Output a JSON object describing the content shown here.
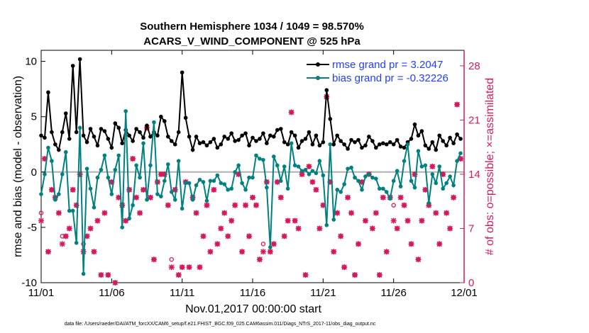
{
  "chart_data": {
    "type": "line",
    "title_line1": "Southern Hemisphere 1034 / 1049 = 98.570%",
    "title_line2": "ACARS_V_WIND_COMPONENT @ 525 hPa",
    "xlabel": "Nov.01,2017 00:00:00 start",
    "ylabel_left": "rmse and bias (model - observation)",
    "ylabel_right": "# of obs: o=possible; ×=assimilated",
    "footnote": "data file: /Users/raeder/DAI/ATM_forcXX/CAM6_setup/f.e21.FHIST_BGC.f09_025.CAM6assim.011/Diags_NTrS_2017-11/obs_diag_output.nc",
    "xlim": [
      0,
      30
    ],
    "ylim_left": [
      -10,
      11
    ],
    "ylim_right": [
      0,
      30
    ],
    "x_ticks": [
      0,
      5,
      10,
      15,
      20,
      25,
      30
    ],
    "x_tick_labels": [
      "11/01",
      "11/06",
      "11/11",
      "11/16",
      "11/21",
      "11/26",
      "12/01"
    ],
    "y_ticks_left": [
      -10,
      -5,
      0,
      5,
      10
    ],
    "y_tick_labels_left": [
      "-10",
      "-5",
      "0",
      "5",
      "10"
    ],
    "y_ticks_right": [
      0,
      7,
      14,
      21,
      28
    ],
    "y_tick_labels_right": [
      "0",
      "7",
      "14",
      "21",
      "28"
    ],
    "zero_line": 0,
    "colors": {
      "rmse": "#000000",
      "bias": "#00807f",
      "obs": "#d6195a",
      "legend_text": "#1f3fff",
      "zero": "#b0b0b0"
    },
    "series": [
      {
        "name": "rmse grand pr = 3.2047",
        "axis": "left",
        "x": [
          0.0,
          0.25,
          0.5,
          0.75,
          1.0,
          1.25,
          1.5,
          1.75,
          2.0,
          2.25,
          2.5,
          2.75,
          3.0,
          3.25,
          3.5,
          3.75,
          4.0,
          4.25,
          4.5,
          4.75,
          5.0,
          5.25,
          5.5,
          5.75,
          6.0,
          6.25,
          6.5,
          6.75,
          7.0,
          7.25,
          7.5,
          7.75,
          8.0,
          8.25,
          8.5,
          8.75,
          9.0,
          9.25,
          9.5,
          9.75,
          10.0,
          10.25,
          10.5,
          10.75,
          11.0,
          11.25,
          11.5,
          11.75,
          12.0,
          12.25,
          12.5,
          12.75,
          13.0,
          13.25,
          13.5,
          13.75,
          14.0,
          14.25,
          14.5,
          14.75,
          15.0,
          15.25,
          15.5,
          15.75,
          16.0,
          16.25,
          16.5,
          16.75,
          17.0,
          17.25,
          17.5,
          17.75,
          18.0,
          18.25,
          18.5,
          18.75,
          19.0,
          19.25,
          19.5,
          19.75,
          20.0,
          20.25,
          20.5,
          20.75,
          21.0,
          21.25,
          21.5,
          21.75,
          22.0,
          22.25,
          22.5,
          22.75,
          23.0,
          23.25,
          23.5,
          23.75,
          24.0,
          24.25,
          24.5,
          24.75,
          25.0,
          25.25,
          25.5,
          25.75,
          26.0,
          26.25,
          26.5,
          26.75,
          27.0,
          27.25,
          27.5,
          27.75,
          28.0,
          28.25,
          28.5,
          28.75,
          29.0,
          29.25,
          29.5,
          29.75
        ],
        "values": [
          3.3,
          3.1,
          7.2,
          3.6,
          2.5,
          2.0,
          3.6,
          5.3,
          3.0,
          9.6,
          3.6,
          10.2,
          3.3,
          2.7,
          3.9,
          3.2,
          2.4,
          3.9,
          3.7,
          3.0,
          2.2,
          4.4,
          4.0,
          2.6,
          3.8,
          3.3,
          2.8,
          3.9,
          3.6,
          3.1,
          4.2,
          3.2,
          3.6,
          3.3,
          5.0,
          4.6,
          3.2,
          2.8,
          2.5,
          3.6,
          9.0,
          4.9,
          3.2,
          2.0,
          3.2,
          2.6,
          2.7,
          2.4,
          2.7,
          3.0,
          2.2,
          2.5,
          3.2,
          3.0,
          3.5,
          2.8,
          2.9,
          3.3,
          3.5,
          2.4,
          3.1,
          2.8,
          3.0,
          3.5,
          2.6,
          3.3,
          3.2,
          3.8,
          3.9,
          2.7,
          2.5,
          3.6,
          3.3,
          2.2,
          2.8,
          3.0,
          3.6,
          2.5,
          3.3,
          2.4,
          2.7,
          7.4,
          4.8,
          2.5,
          3.3,
          2.8,
          2.5,
          2.1,
          2.9,
          2.7,
          2.9,
          2.2,
          2.4,
          3.2,
          2.8,
          2.2,
          2.5,
          2.6,
          2.5,
          2.7,
          2.5,
          2.9,
          2.3,
          2.2,
          2.7,
          3.0,
          4.3,
          3.3,
          3.7,
          2.4,
          2.1,
          2.7,
          2.0,
          3.3,
          2.8,
          2.4,
          3.1,
          2.6,
          3.4,
          3.0
        ]
      },
      {
        "name": "bias grand pr = -0.32226",
        "axis": "left",
        "x": [
          0.0,
          0.25,
          0.5,
          0.75,
          1.0,
          1.25,
          1.5,
          1.75,
          2.0,
          2.25,
          2.5,
          2.75,
          3.0,
          3.25,
          3.5,
          3.75,
          4.0,
          4.25,
          4.5,
          4.75,
          5.0,
          5.25,
          5.5,
          5.75,
          6.0,
          6.25,
          6.5,
          6.75,
          7.0,
          7.25,
          7.5,
          7.75,
          8.0,
          8.25,
          8.5,
          8.75,
          9.0,
          9.25,
          9.5,
          9.75,
          10.0,
          10.25,
          10.5,
          10.75,
          11.0,
          11.25,
          11.5,
          11.75,
          12.0,
          12.25,
          12.5,
          12.75,
          13.0,
          13.25,
          13.5,
          13.75,
          14.0,
          14.25,
          14.5,
          14.75,
          15.0,
          15.25,
          15.5,
          15.75,
          16.0,
          16.25,
          16.5,
          16.75,
          17.0,
          17.25,
          17.5,
          17.75,
          18.0,
          18.25,
          18.5,
          18.75,
          19.0,
          19.25,
          19.5,
          19.75,
          20.0,
          20.25,
          20.5,
          20.75,
          21.0,
          21.25,
          21.5,
          21.75,
          22.0,
          22.25,
          22.5,
          22.75,
          23.0,
          23.25,
          23.5,
          23.75,
          24.0,
          24.25,
          24.5,
          24.75,
          25.0,
          25.25,
          25.5,
          25.75,
          26.0,
          26.25,
          26.5,
          26.75,
          27.0,
          27.25,
          27.5,
          27.75,
          28.0,
          28.25,
          28.5,
          28.75,
          29.0,
          29.25,
          29.5,
          29.75
        ],
        "values": [
          -2.0,
          -0.2,
          2.2,
          1.0,
          -2.5,
          -2.0,
          -0.2,
          1.8,
          -3.5,
          -3.5,
          -6.4,
          4.0,
          -9.2,
          0.3,
          -1.5,
          -3.2,
          -0.5,
          0.2,
          1.5,
          -0.5,
          -2.0,
          0.2,
          1.5,
          -5.0,
          5.5,
          -4.2,
          -3.0,
          0.6,
          -0.5,
          2.6,
          -2.5,
          0.6,
          4.5,
          -2.0,
          -2.2,
          -0.8,
          0.7,
          -1.8,
          -2.5,
          1.0,
          -3.3,
          -1.0,
          -1.0,
          -2.5,
          -1.2,
          -0.7,
          -0.9,
          -2.6,
          -0.8,
          -0.8,
          -0.3,
          -1.0,
          -1.1,
          -1.6,
          -1.5,
          0.0,
          0.6,
          -1.0,
          -1.6,
          -0.5,
          -0.5,
          1.5,
          1.2,
          1.1,
          -1.4,
          -6.8,
          1.4,
          0.6,
          -0.8,
          0.5,
          -1.5,
          2.6,
          0.6,
          0.5,
          0.1,
          0.2,
          -0.2,
          0.1,
          -0.1,
          1.0,
          -0.3,
          -4.8,
          2.5,
          -4.3,
          -1.6,
          -1.8,
          -1.1,
          0.3,
          0.4,
          -0.5,
          -0.8,
          -1.6,
          -0.4,
          -0.2,
          -0.5,
          -0.6,
          -1.5,
          -1.5,
          -1.8,
          -2.4,
          -0.8,
          0.1,
          -1.3,
          1.0,
          2.5,
          -0.8,
          -1.4,
          1.9,
          0.5,
          0.6,
          -2.8,
          -0.2,
          -1.0,
          0.5,
          -1.5,
          -1.0,
          -0.4,
          -1.2,
          1.0,
          1.7
        ]
      }
    ],
    "obs_possible": {
      "axis": "right",
      "marker": "o",
      "x": [
        0.0,
        0.25,
        0.5,
        0.75,
        1.0,
        1.25,
        1.5,
        1.75,
        2.0,
        2.25,
        2.5,
        2.75,
        3.0,
        3.25,
        3.5,
        3.75,
        4.0,
        4.25,
        4.5,
        4.75,
        5.0,
        5.25,
        5.5,
        5.75,
        6.0,
        6.25,
        6.5,
        6.75,
        7.0,
        7.25,
        7.5,
        7.75,
        8.0,
        8.25,
        8.5,
        8.75,
        9.0,
        9.25,
        9.5,
        9.75,
        10.0,
        10.25,
        10.5,
        10.75,
        11.0,
        11.25,
        11.5,
        11.75,
        12.0,
        12.25,
        12.5,
        12.75,
        13.0,
        13.25,
        13.5,
        13.75,
        14.0,
        14.25,
        14.5,
        14.75,
        15.0,
        15.25,
        15.5,
        15.75,
        16.0,
        16.25,
        16.5,
        16.75,
        17.0,
        17.25,
        17.5,
        17.75,
        18.0,
        18.25,
        18.5,
        18.75,
        19.0,
        19.25,
        19.5,
        19.75,
        20.0,
        20.25,
        20.5,
        20.75,
        21.0,
        21.25,
        21.5,
        21.75,
        22.0,
        22.25,
        22.5,
        22.75,
        23.0,
        23.25,
        23.5,
        23.75,
        24.0,
        24.25,
        24.5,
        24.75,
        25.0,
        25.25,
        25.5,
        25.75,
        26.0,
        26.25,
        26.5,
        26.75,
        27.0,
        27.25,
        27.5,
        27.75,
        28.0,
        28.25,
        28.5,
        28.75,
        29.0,
        29.25,
        29.5,
        29.75
      ],
      "values": [
        9,
        16,
        4,
        12,
        11,
        9,
        6,
        6,
        7,
        12,
        10,
        14,
        5,
        6,
        7,
        4,
        8,
        1,
        9,
        1,
        13,
        0,
        11,
        10,
        8,
        12,
        16,
        11,
        9,
        12,
        20,
        11,
        3,
        13,
        14,
        14,
        10,
        3,
        12,
        1,
        2,
        13,
        2,
        11,
        9,
        2,
        6,
        10,
        4,
        12,
        5,
        7,
        9,
        6,
        8,
        10,
        14,
        4,
        10,
        6,
        11,
        10,
        3,
        5,
        13,
        4,
        5,
        13,
        11,
        6,
        8,
        22,
        8,
        7,
        14,
        1,
        15,
        13,
        12,
        7,
        10,
        24,
        13,
        4,
        9,
        6,
        2,
        11,
        9,
        1,
        5,
        13,
        8,
        14,
        7,
        9,
        1,
        11,
        4,
        11,
        10,
        7,
        11,
        10,
        8,
        5,
        14,
        3,
        8,
        12,
        10,
        15,
        9,
        5,
        14,
        9,
        7,
        11,
        23,
        16
      ]
    },
    "obs_assimilated": {
      "axis": "right",
      "marker": "x",
      "x": [
        0.0,
        0.25,
        0.5,
        0.75,
        1.0,
        1.25,
        1.5,
        1.75,
        2.0,
        2.25,
        2.5,
        2.75,
        3.0,
        3.25,
        3.5,
        3.75,
        4.0,
        4.25,
        4.5,
        4.75,
        5.0,
        5.25,
        5.5,
        5.75,
        6.0,
        6.25,
        6.5,
        6.75,
        7.0,
        7.25,
        7.5,
        7.75,
        8.0,
        8.25,
        8.5,
        8.75,
        9.0,
        9.25,
        9.5,
        9.75,
        10.0,
        10.25,
        10.5,
        10.75,
        11.0,
        11.25,
        11.5,
        11.75,
        12.0,
        12.25,
        12.5,
        12.75,
        13.0,
        13.25,
        13.5,
        13.75,
        14.0,
        14.25,
        14.5,
        14.75,
        15.0,
        15.25,
        15.5,
        15.75,
        16.0,
        16.25,
        16.5,
        16.75,
        17.0,
        17.25,
        17.5,
        17.75,
        18.0,
        18.25,
        18.5,
        18.75,
        19.0,
        19.25,
        19.5,
        19.75,
        20.0,
        20.25,
        20.5,
        20.75,
        21.0,
        21.25,
        21.5,
        21.75,
        22.0,
        22.25,
        22.5,
        22.75,
        23.0,
        23.25,
        23.5,
        23.75,
        24.0,
        24.25,
        24.5,
        24.75,
        25.0,
        25.25,
        25.5,
        25.75,
        26.0,
        26.25,
        26.5,
        26.75,
        27.0,
        27.25,
        27.5,
        27.75,
        28.0,
        28.25,
        28.5,
        28.75,
        29.0,
        29.25,
        29.5,
        29.75
      ],
      "values": [
        8,
        16,
        4,
        12,
        11,
        9,
        5,
        6,
        7,
        12,
        10,
        14,
        4,
        6,
        7,
        4,
        8,
        1,
        9,
        1,
        13,
        0,
        11,
        10,
        8,
        12,
        16,
        11,
        9,
        12,
        20,
        11,
        3,
        13,
        14,
        14,
        10,
        2,
        12,
        1,
        2,
        13,
        2,
        11,
        9,
        2,
        6,
        10,
        4,
        12,
        5,
        7,
        9,
        6,
        8,
        10,
        14,
        4,
        10,
        6,
        11,
        10,
        3,
        4,
        13,
        4,
        5,
        13,
        11,
        6,
        8,
        22,
        8,
        7,
        14,
        1,
        15,
        13,
        12,
        7,
        10,
        24,
        13,
        4,
        9,
        6,
        2,
        11,
        9,
        1,
        5,
        13,
        8,
        14,
        7,
        9,
        1,
        11,
        4,
        11,
        8,
        7,
        11,
        10,
        8,
        5,
        14,
        3,
        8,
        12,
        10,
        15,
        9,
        5,
        14,
        9,
        7,
        11,
        23,
        16
      ]
    }
  }
}
